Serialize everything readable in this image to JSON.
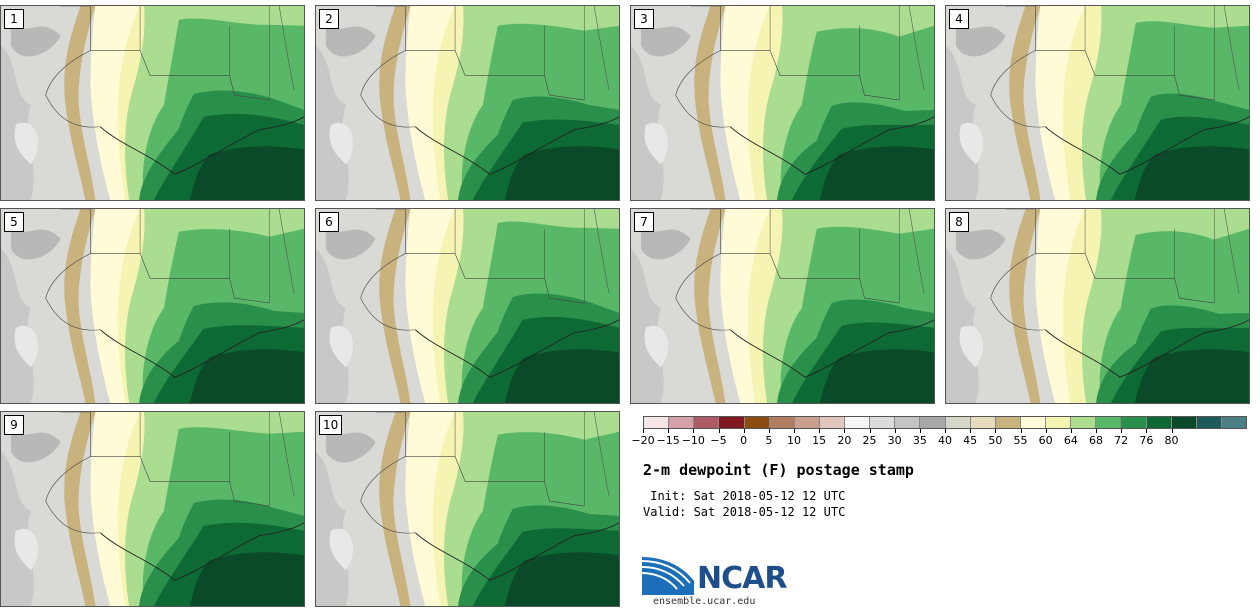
{
  "stamps": [
    "1",
    "2",
    "3",
    "4",
    "5",
    "6",
    "7",
    "8",
    "9",
    "10"
  ],
  "colorbar": {
    "colors": [
      "#f7e6e8",
      "#d6a0a8",
      "#ac5a63",
      "#801a20",
      "#8a4c10",
      "#b07e5e",
      "#c9a08e",
      "#e0c6bc",
      "#f5f5f5",
      "#dcdcdc",
      "#c4c4c4",
      "#a8a8a8",
      "#d8d6c8",
      "#e6dcbc",
      "#c8b27e",
      "#fefbd6",
      "#f6f4b2",
      "#aadd90",
      "#58b868",
      "#2a8f4a",
      "#0e6a34",
      "#0a4a28",
      "#1e5a5a",
      "#4a7e82"
    ],
    "ticks": [
      "−20",
      "−15",
      "−10",
      "−5",
      "0",
      "5",
      "10",
      "15",
      "20",
      "25",
      "30",
      "35",
      "40",
      "45",
      "50",
      "55",
      "60",
      "64",
      "68",
      "72",
      "76",
      "80"
    ]
  },
  "title": "2-m dewpoint (F) postage stamp",
  "init_line": " Init: Sat 2018-05-12 12 UTC",
  "valid_line": "Valid: Sat 2018-05-12 12 UTC",
  "logo": {
    "text": "NCAR",
    "url": "ensemble.ucar.edu",
    "color": "#1f4f8a"
  }
}
